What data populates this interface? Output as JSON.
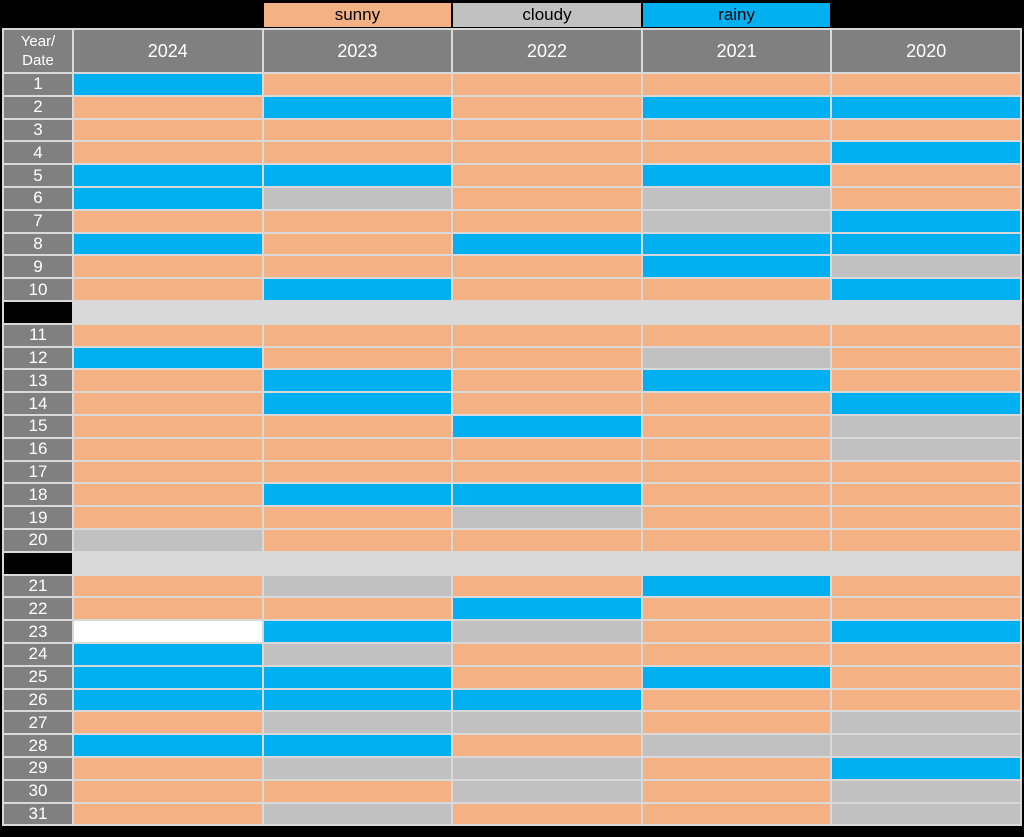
{
  "chart_data": {
    "type": "heatmap",
    "corner_line1": "Year/",
    "corner_line2": "Date",
    "columns": [
      "2024",
      "2023",
      "2022",
      "2021",
      "2020"
    ],
    "rows": [
      "1",
      "2",
      "3",
      "4",
      "5",
      "6",
      "7",
      "8",
      "9",
      "10",
      "11",
      "12",
      "13",
      "14",
      "15",
      "16",
      "17",
      "18",
      "19",
      "20",
      "21",
      "22",
      "23",
      "24",
      "25",
      "26",
      "27",
      "28",
      "29",
      "30",
      "31"
    ],
    "legend": [
      {
        "label": "sunny",
        "weather": "sunny",
        "color": "#f4b183"
      },
      {
        "label": "cloudy",
        "weather": "cloudy",
        "color": "#c1c1c1"
      },
      {
        "label": "rainy",
        "weather": "rainy",
        "color": "#00b0f0"
      }
    ],
    "values": [
      [
        "rainy",
        "sunny",
        "sunny",
        "sunny",
        "sunny"
      ],
      [
        "sunny",
        "rainy",
        "sunny",
        "rainy",
        "rainy"
      ],
      [
        "sunny",
        "sunny",
        "sunny",
        "sunny",
        "sunny"
      ],
      [
        "sunny",
        "sunny",
        "sunny",
        "sunny",
        "rainy"
      ],
      [
        "rainy",
        "rainy",
        "sunny",
        "rainy",
        "sunny"
      ],
      [
        "rainy",
        "cloudy",
        "sunny",
        "cloudy",
        "sunny"
      ],
      [
        "sunny",
        "sunny",
        "sunny",
        "cloudy",
        "rainy"
      ],
      [
        "rainy",
        "sunny",
        "rainy",
        "rainy",
        "rainy"
      ],
      [
        "sunny",
        "sunny",
        "sunny",
        "rainy",
        "cloudy"
      ],
      [
        "sunny",
        "rainy",
        "sunny",
        "sunny",
        "rainy"
      ],
      [
        "sunny",
        "sunny",
        "sunny",
        "sunny",
        "sunny"
      ],
      [
        "rainy",
        "sunny",
        "sunny",
        "cloudy",
        "sunny"
      ],
      [
        "sunny",
        "rainy",
        "sunny",
        "rainy",
        "sunny"
      ],
      [
        "sunny",
        "rainy",
        "sunny",
        "sunny",
        "rainy"
      ],
      [
        "sunny",
        "sunny",
        "rainy",
        "sunny",
        "cloudy"
      ],
      [
        "sunny",
        "sunny",
        "sunny",
        "sunny",
        "cloudy"
      ],
      [
        "sunny",
        "sunny",
        "sunny",
        "sunny",
        "sunny"
      ],
      [
        "sunny",
        "rainy",
        "rainy",
        "sunny",
        "sunny"
      ],
      [
        "sunny",
        "sunny",
        "cloudy",
        "sunny",
        "sunny"
      ],
      [
        "cloudy",
        "sunny",
        "sunny",
        "sunny",
        "sunny"
      ],
      [
        "sunny",
        "cloudy",
        "sunny",
        "rainy",
        "sunny"
      ],
      [
        "sunny",
        "sunny",
        "rainy",
        "sunny",
        "sunny"
      ],
      [
        "none",
        "rainy",
        "cloudy",
        "sunny",
        "rainy"
      ],
      [
        "rainy",
        "cloudy",
        "sunny",
        "sunny",
        "sunny"
      ],
      [
        "rainy",
        "rainy",
        "sunny",
        "rainy",
        "sunny"
      ],
      [
        "rainy",
        "rainy",
        "rainy",
        "sunny",
        "sunny"
      ],
      [
        "sunny",
        "cloudy",
        "cloudy",
        "sunny",
        "cloudy"
      ],
      [
        "rainy",
        "rainy",
        "sunny",
        "cloudy",
        "cloudy"
      ],
      [
        "sunny",
        "cloudy",
        "cloudy",
        "sunny",
        "rainy"
      ],
      [
        "sunny",
        "sunny",
        "cloudy",
        "sunny",
        "cloudy"
      ],
      [
        "sunny",
        "cloudy",
        "sunny",
        "sunny",
        "cloudy"
      ]
    ],
    "section_breaks_after": [
      10,
      20
    ],
    "empty_cells": [
      {
        "row": "23",
        "column": "2024"
      }
    ],
    "palette": {
      "sunny": "#f4b183",
      "cloudy": "#c1c1c1",
      "rainy": "#00b0f0",
      "none": "#ffffff"
    },
    "colors": {
      "background": "#000000",
      "header_bg": "#808080",
      "header_text": "#ffffff",
      "grid_line": "#d9d9d9",
      "separator_band": "#d9d9d9",
      "legend_text": "#000000",
      "legend_spacer": "#000000"
    },
    "layout": {
      "legend_position": "top",
      "grid": "on"
    }
  }
}
